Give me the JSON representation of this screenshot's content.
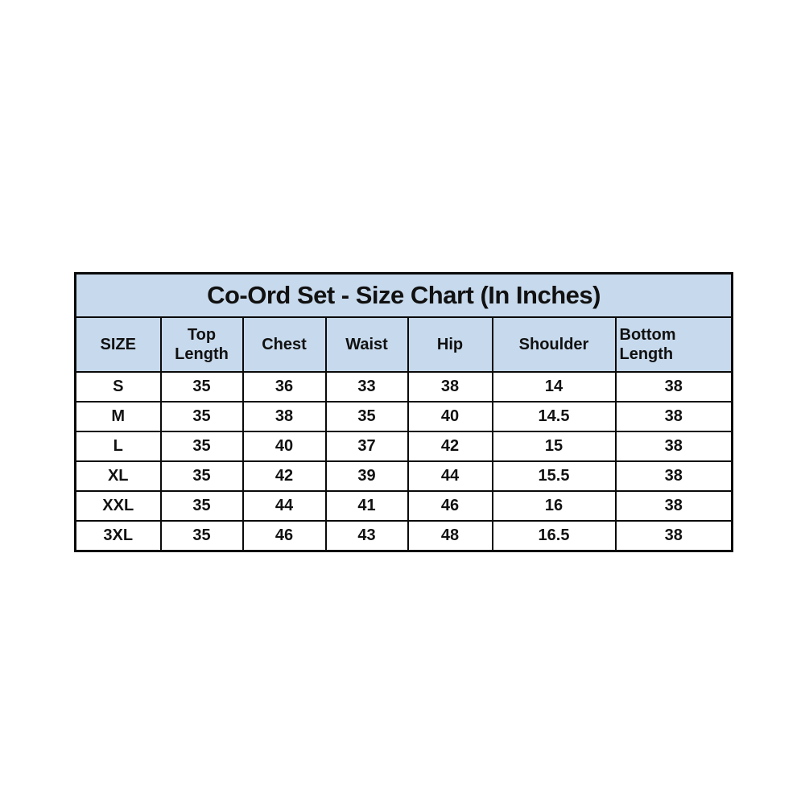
{
  "page": {
    "background_color": "#ffffff",
    "header_fill_color": "#c7d9ec",
    "border_color": "#0a0a0a",
    "text_color": "#111111"
  },
  "chart_data": {
    "type": "table",
    "title": "Co-Ord Set - Size Chart (In Inches)",
    "columns": [
      "SIZE",
      "Top Length",
      "Chest",
      "Waist",
      "Hip",
      "Shoulder",
      "Bottom Length"
    ],
    "rows": [
      [
        "S",
        "35",
        "36",
        "33",
        "38",
        "14",
        "38"
      ],
      [
        "M",
        "35",
        "38",
        "35",
        "40",
        "14.5",
        "38"
      ],
      [
        "L",
        "35",
        "40",
        "37",
        "42",
        "15",
        "38"
      ],
      [
        "XL",
        "35",
        "42",
        "39",
        "44",
        "15.5",
        "38"
      ],
      [
        "XXL",
        "35",
        "44",
        "41",
        "46",
        "16",
        "38"
      ],
      [
        "3XL",
        "35",
        "46",
        "43",
        "48",
        "16.5",
        "38"
      ]
    ],
    "layout": {
      "grid": "on",
      "header_background": "#c7d9ec",
      "body_background": "#ffffff",
      "units": "inches"
    }
  }
}
